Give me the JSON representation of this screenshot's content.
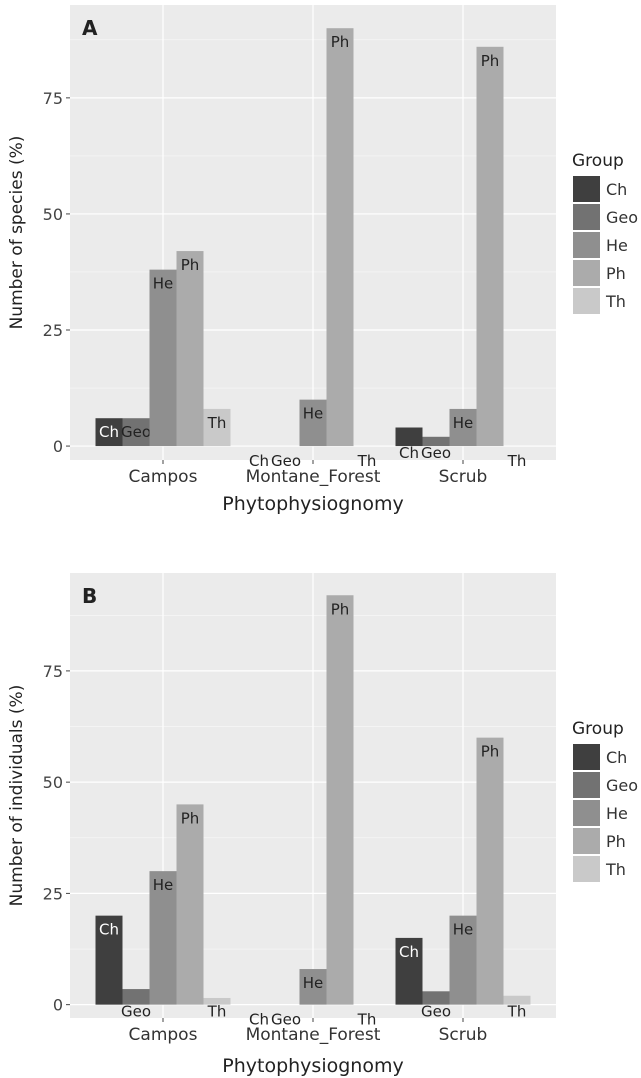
{
  "chart_data": [
    {
      "type": "bar",
      "panel_label": "A",
      "categories": [
        "Campos",
        "Montane_Forest",
        "Scrub"
      ],
      "series": [
        {
          "name": "Ch",
          "values": [
            6,
            0,
            4
          ]
        },
        {
          "name": "Geo",
          "values": [
            6,
            0,
            2
          ]
        },
        {
          "name": "He",
          "values": [
            38,
            10,
            8
          ]
        },
        {
          "name": "Ph",
          "values": [
            42,
            90,
            86
          ]
        },
        {
          "name": "Th",
          "values": [
            8,
            0,
            0
          ]
        }
      ],
      "xlabel": "Phytophysiognomy",
      "ylabel": "Number of species (%)",
      "ylim": [
        -3,
        95
      ],
      "yticks": [
        0,
        25,
        50,
        75
      ],
      "legend_title": "Group",
      "legend_position": "right",
      "grid": true
    },
    {
      "type": "bar",
      "panel_label": "B",
      "categories": [
        "Campos",
        "Montane_Forest",
        "Scrub"
      ],
      "series": [
        {
          "name": "Ch",
          "values": [
            20,
            0,
            15
          ]
        },
        {
          "name": "Geo",
          "values": [
            3.5,
            0,
            3
          ]
        },
        {
          "name": "He",
          "values": [
            30,
            8,
            20
          ]
        },
        {
          "name": "Ph",
          "values": [
            45,
            92,
            60
          ]
        },
        {
          "name": "Th",
          "values": [
            1.5,
            0,
            2
          ]
        }
      ],
      "xlabel": "Phytophysiognomy",
      "ylabel": "Number of individuals (%)",
      "ylim": [
        -3,
        97
      ],
      "yticks": [
        0,
        25,
        50,
        75
      ],
      "legend_title": "Group",
      "legend_position": "right",
      "grid": true
    }
  ],
  "colors": {
    "panel_background": "#ebebeb",
    "grid": "#ffffff",
    "Ch": "#3f3f3f",
    "Geo": "#727272",
    "He": "#8f8f8f",
    "Ph": "#ababab",
    "Th": "#c9c9c9"
  }
}
